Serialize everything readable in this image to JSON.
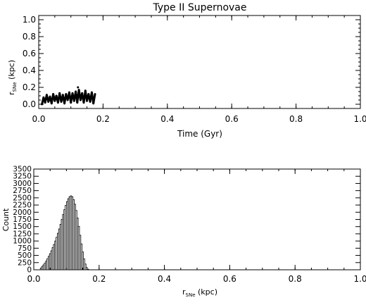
{
  "chart_data": [
    {
      "type": "line",
      "title": "Type II Supernovae",
      "xlabel": "Time (Gyr)",
      "ylabel_main": "r",
      "ylabel_sub": "SNe",
      "ylabel_unit": " (kpc)",
      "xlim": [
        0.0,
        1.0
      ],
      "ylim": [
        -0.05,
        1.05
      ],
      "x_ticks": [
        0.0,
        0.2,
        0.4,
        0.6,
        0.8,
        1.0
      ],
      "x_tick_labels": [
        "0.0",
        "0.2",
        "0.4",
        "0.6",
        "0.8",
        "1.0"
      ],
      "y_ticks": [
        0.0,
        0.2,
        0.4,
        0.6,
        0.8,
        1.0
      ],
      "y_tick_labels": [
        "0.0",
        "0.2",
        "0.4",
        "0.6",
        "0.8",
        "1.0"
      ],
      "x_minor_step": 0.05,
      "y_minor_step": 0.05,
      "series": [
        {
          "x": [
            0.01,
            0.015,
            0.02,
            0.025,
            0.03,
            0.035,
            0.04,
            0.045,
            0.05,
            0.055,
            0.06,
            0.065,
            0.07,
            0.075,
            0.08,
            0.085,
            0.09,
            0.095,
            0.1,
            0.105,
            0.11,
            0.115,
            0.12,
            0.125,
            0.13,
            0.135,
            0.14,
            0.145,
            0.15,
            0.155,
            0.16,
            0.165,
            0.17,
            0.175
          ],
          "y": [
            0.0,
            0.08,
            0.02,
            0.11,
            0.03,
            0.09,
            0.01,
            0.12,
            0.04,
            0.1,
            0.02,
            0.13,
            0.03,
            0.11,
            0.01,
            0.12,
            0.05,
            0.14,
            0.02,
            0.13,
            0.04,
            0.15,
            0.02,
            0.17,
            0.05,
            0.13,
            0.02,
            0.16,
            0.04,
            0.12,
            0.03,
            0.14,
            0.01,
            0.12
          ]
        }
      ],
      "markers": [
        {
          "x": 0.122,
          "y": 0.2
        }
      ]
    },
    {
      "type": "bar",
      "xlabel_main": "r",
      "xlabel_sub": "SNe",
      "xlabel_unit": " (kpc)",
      "ylabel": "Count",
      "xlim": [
        0.0,
        1.0
      ],
      "ylim": [
        0,
        3500
      ],
      "x_ticks": [
        0.0,
        0.2,
        0.4,
        0.6,
        0.8,
        1.0
      ],
      "x_tick_labels": [
        "0.0",
        "0.2",
        "0.4",
        "0.6",
        "0.8",
        "1.0"
      ],
      "y_ticks": [
        0,
        250,
        500,
        750,
        1000,
        1250,
        1500,
        1750,
        2000,
        2250,
        2500,
        2750,
        3000,
        3250,
        3500
      ],
      "y_tick_labels": [
        "0",
        "250",
        "500",
        "750",
        "1000",
        "1250",
        "1500",
        "1750",
        "2000",
        "2250",
        "2500",
        "2750",
        "3000",
        "3250",
        "3500"
      ],
      "x_minor_step": 0.05,
      "bin_width": 0.004,
      "bin_start": 0.02,
      "values": [
        60,
        120,
        170,
        230,
        300,
        380,
        470,
        560,
        660,
        770,
        880,
        1000,
        1130,
        1270,
        1420,
        1580,
        1750,
        1920,
        2090,
        2240,
        2370,
        2470,
        2540,
        2570,
        2540,
        2440,
        2280,
        2060,
        1800,
        1510,
        1200,
        900,
        620,
        380,
        200,
        80,
        20
      ]
    }
  ]
}
